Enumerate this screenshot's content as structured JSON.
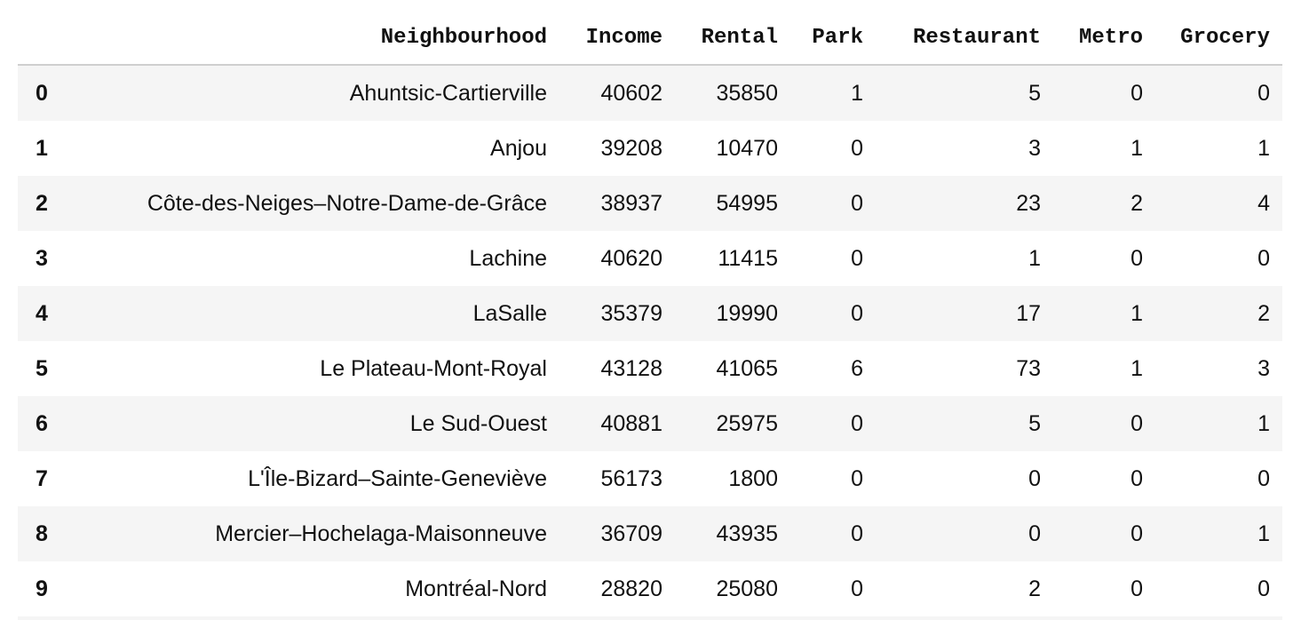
{
  "table": {
    "columns": [
      "",
      "Neighbourhood",
      "Income",
      "Rental",
      "Park",
      "Restaurant",
      "Metro",
      "Grocery"
    ],
    "rows": [
      [
        "0",
        "Ahuntsic-Cartierville",
        "40602",
        "35850",
        "1",
        "5",
        "0",
        "0"
      ],
      [
        "1",
        "Anjou",
        "39208",
        "10470",
        "0",
        "3",
        "1",
        "1"
      ],
      [
        "2",
        "Côte-des-Neiges–Notre-Dame-de-Grâce",
        "38937",
        "54995",
        "0",
        "23",
        "2",
        "4"
      ],
      [
        "3",
        "Lachine",
        "40620",
        "11415",
        "0",
        "1",
        "0",
        "0"
      ],
      [
        "4",
        "LaSalle",
        "35379",
        "19990",
        "0",
        "17",
        "1",
        "2"
      ],
      [
        "5",
        "Le Plateau-Mont-Royal",
        "43128",
        "41065",
        "6",
        "73",
        "1",
        "3"
      ],
      [
        "6",
        "Le Sud-Ouest",
        "40881",
        "25975",
        "0",
        "5",
        "0",
        "1"
      ],
      [
        "7",
        "L'Île-Bizard–Sainte-Geneviève",
        "56173",
        "1800",
        "0",
        "0",
        "0",
        "0"
      ],
      [
        "8",
        "Mercier–Hochelaga-Maisonneuve",
        "36709",
        "43935",
        "0",
        "0",
        "0",
        "1"
      ],
      [
        "9",
        "Montréal-Nord",
        "28820",
        "25080",
        "0",
        "2",
        "0",
        "0"
      ]
    ]
  }
}
